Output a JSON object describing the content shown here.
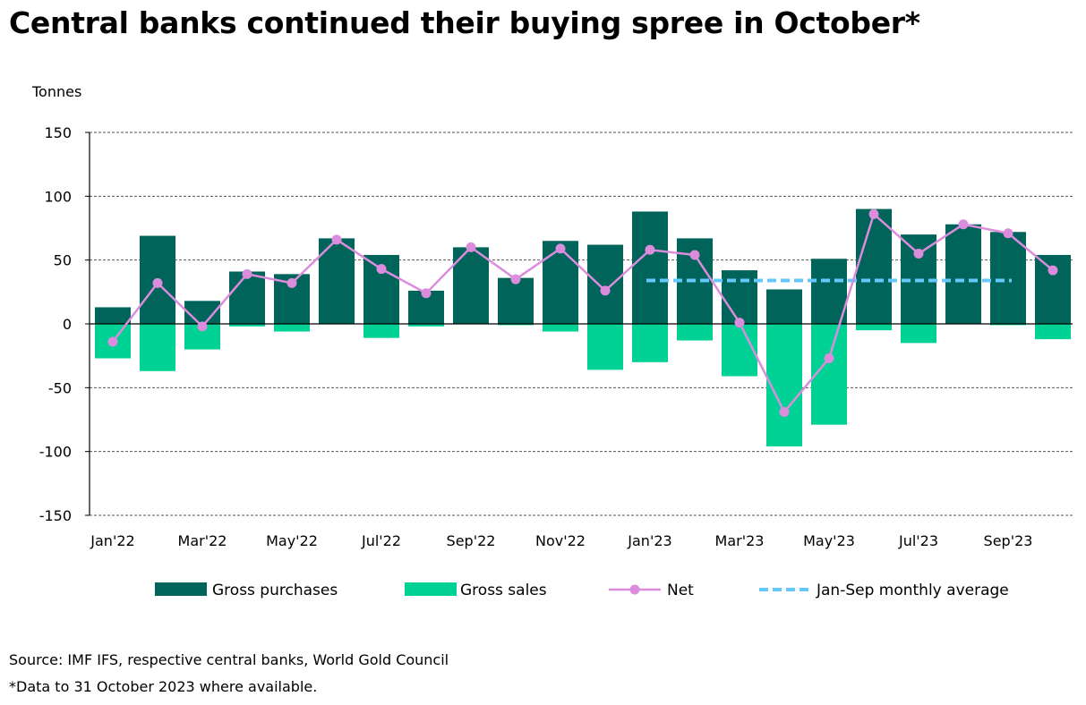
{
  "title": "Central banks continued their buying spree in October*",
  "footer": {
    "source": "Source: IMF IFS, respective central banks, World Gold Council",
    "note": "*Data to 31 October 2023 where available."
  },
  "chart_data": {
    "type": "bar",
    "title": "Central banks continued their buying spree in October*",
    "ylabel": "Tonnes",
    "xlabel": "",
    "ylim": [
      -150,
      150
    ],
    "yticks": [
      150,
      100,
      50,
      0,
      -50,
      -100,
      -150
    ],
    "grid": true,
    "legend_position": "bottom",
    "categories": [
      "Jan'22",
      "Feb'22",
      "Mar'22",
      "Apr'22",
      "May'22",
      "Jun'22",
      "Jul'22",
      "Aug'22",
      "Sep'22",
      "Oct'22",
      "Nov'22",
      "Dec'22",
      "Jan'23",
      "Feb'23",
      "Mar'23",
      "Apr'23",
      "May'23",
      "Jun'23",
      "Jul'23",
      "Aug'23",
      "Sep'23",
      "Oct'23"
    ],
    "xtick_labels": [
      "Jan'22",
      "Mar'22",
      "May'22",
      "Jul'22",
      "Sep'22",
      "Nov'22",
      "Jan'23",
      "Mar'23",
      "May'23",
      "Jul'23",
      "Sep'23"
    ],
    "series": [
      {
        "name": "Gross purchases",
        "type": "bar",
        "color": "#00645a",
        "values": [
          13,
          69,
          18,
          41,
          39,
          67,
          54,
          26,
          60,
          36,
          65,
          62,
          88,
          67,
          42,
          27,
          51,
          90,
          70,
          78,
          72,
          54
        ]
      },
      {
        "name": "Gross sales",
        "type": "bar",
        "color": "#00d296",
        "values": [
          -27,
          -37,
          -20,
          -2,
          -6,
          0,
          -11,
          -2,
          0,
          -1,
          -6,
          -36,
          -30,
          -13,
          -41,
          -96,
          -79,
          -5,
          -15,
          0,
          -1,
          -12
        ]
      },
      {
        "name": "Net",
        "type": "line",
        "color": "#dc8cdc",
        "values": [
          -14,
          32,
          -2,
          39,
          32,
          66,
          43,
          24,
          60,
          35,
          59,
          26,
          58,
          54,
          1,
          -69,
          -27,
          86,
          55,
          78,
          71,
          42
        ]
      },
      {
        "name": "Jan-Sep monthly average",
        "type": "dashed-line",
        "color": "#64c8ff",
        "range": [
          "Jan'23",
          "Sep'23"
        ],
        "value": 34
      }
    ]
  }
}
